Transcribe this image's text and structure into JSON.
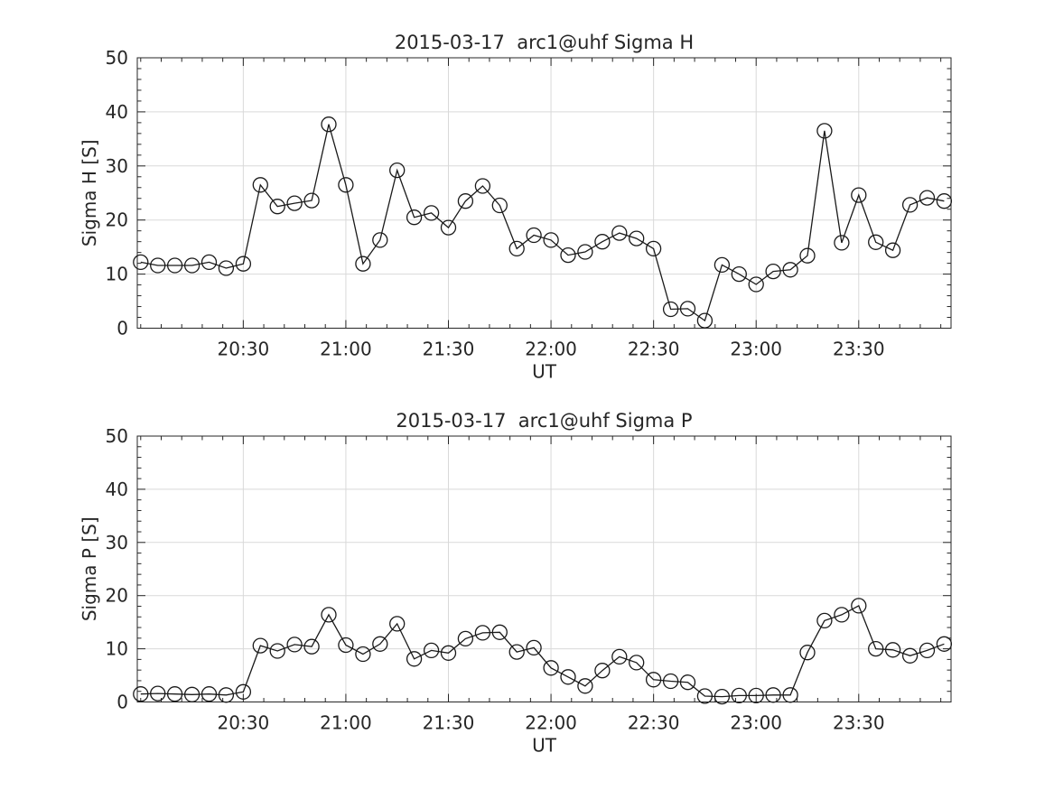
{
  "figure": {
    "background": "#ffffff",
    "axis_color": "#262626",
    "line_color": "#1a1a1a",
    "grid_color": "#d9d9d9",
    "text_color": "#262626"
  },
  "chart_data": [
    {
      "type": "line",
      "title": "2015-03-17  arc1@uhf Sigma H",
      "xlabel": "UT",
      "ylabel": "Sigma H [S]",
      "ylim": [
        0,
        50
      ],
      "yticks": [
        0,
        10,
        20,
        30,
        40,
        50
      ],
      "xtick_labels": [
        "20:30",
        "21:00",
        "21:30",
        "22:00",
        "22:30",
        "23:00",
        "23:30"
      ],
      "grid": true,
      "legend_position": "none",
      "marker": "open-circle",
      "x": [
        "20:00",
        "20:05",
        "20:10",
        "20:15",
        "20:20",
        "20:25",
        "20:30",
        "20:35",
        "20:40",
        "20:45",
        "20:50",
        "20:55",
        "21:00",
        "21:05",
        "21:10",
        "21:15",
        "21:20",
        "21:25",
        "21:30",
        "21:35",
        "21:40",
        "21:45",
        "21:50",
        "21:55",
        "22:00",
        "22:05",
        "22:10",
        "22:15",
        "22:20",
        "22:25",
        "22:30",
        "22:35",
        "22:40",
        "22:45",
        "22:50",
        "22:55",
        "23:00",
        "23:05",
        "23:10",
        "23:15",
        "23:20",
        "23:25",
        "23:30",
        "23:35",
        "23:40",
        "23:45",
        "23:50",
        "23:55"
      ],
      "values": [
        12.2,
        11.6,
        11.6,
        11.6,
        12.2,
        11.1,
        11.9,
        26.5,
        22.5,
        23.1,
        23.6,
        37.7,
        26.5,
        11.9,
        16.3,
        29.2,
        20.5,
        21.3,
        18.6,
        23.5,
        26.3,
        22.7,
        14.7,
        17.2,
        16.3,
        13.5,
        14.1,
        16.0,
        17.6,
        16.6,
        14.7,
        3.5,
        3.6,
        1.4,
        11.7,
        10.0,
        8.1,
        10.5,
        10.8,
        13.4,
        36.5,
        15.8,
        24.6,
        15.9,
        14.4,
        22.8,
        24.1,
        23.5
      ]
    },
    {
      "type": "line",
      "title": "2015-03-17  arc1@uhf Sigma P",
      "xlabel": "UT",
      "ylabel": "Sigma P [S]",
      "ylim": [
        0,
        50
      ],
      "yticks": [
        0,
        10,
        20,
        30,
        40,
        50
      ],
      "xtick_labels": [
        "20:30",
        "21:00",
        "21:30",
        "22:00",
        "22:30",
        "23:00",
        "23:30"
      ],
      "grid": true,
      "legend_position": "none",
      "marker": "open-circle",
      "x": [
        "20:00",
        "20:05",
        "20:10",
        "20:15",
        "20:20",
        "20:25",
        "20:30",
        "20:35",
        "20:40",
        "20:45",
        "20:50",
        "20:55",
        "21:00",
        "21:05",
        "21:10",
        "21:15",
        "21:20",
        "21:25",
        "21:30",
        "21:35",
        "21:40",
        "21:45",
        "21:50",
        "21:55",
        "22:00",
        "22:05",
        "22:10",
        "22:15",
        "22:20",
        "22:25",
        "22:30",
        "22:35",
        "22:40",
        "22:45",
        "22:50",
        "22:55",
        "23:00",
        "23:05",
        "23:10",
        "23:15",
        "23:20",
        "23:25",
        "23:30",
        "23:35",
        "23:40",
        "23:45",
        "23:50",
        "23:55"
      ],
      "values": [
        1.5,
        1.6,
        1.5,
        1.4,
        1.5,
        1.3,
        1.9,
        10.6,
        9.6,
        10.8,
        10.4,
        16.4,
        10.7,
        9.0,
        10.9,
        14.7,
        8.1,
        9.7,
        9.2,
        11.9,
        13.0,
        13.1,
        9.4,
        10.2,
        6.4,
        4.7,
        3.0,
        5.9,
        8.5,
        7.4,
        4.2,
        3.9,
        3.7,
        1.1,
        1.0,
        1.2,
        1.2,
        1.3,
        1.3,
        9.3,
        15.3,
        16.4,
        18.1,
        10.0,
        9.8,
        8.7,
        9.7,
        10.9
      ]
    }
  ]
}
